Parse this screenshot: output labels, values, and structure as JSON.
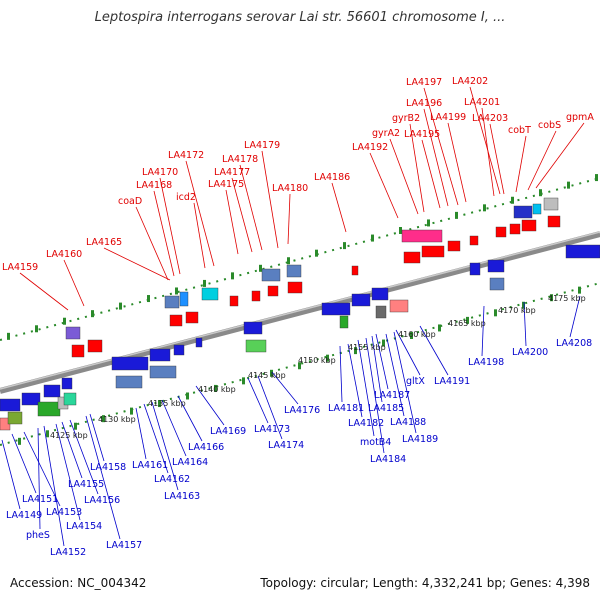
{
  "title": "Leptospira interrogans serovar Lai str. 56601 chromosome I, ...",
  "accession": "Accession: NC_004342",
  "summary": "Topology: circular; Length: 4,332,241 bp; Genes: 4,398",
  "colors": {
    "forward_label": "#e00000",
    "reverse_label": "#0000cc",
    "backbone": "#8a8a8a",
    "ticks": "#2a8a2a"
  },
  "scale_labels": [
    "4125 kbp",
    "4130 kbp",
    "4135 kbp",
    "4140 kbp",
    "4145 kbp",
    "4150 kbp",
    "4155 kbp",
    "4160 kbp",
    "4165 kbp",
    "4170 kbp",
    "4175 kbp"
  ],
  "forward_genes": [
    "LA4159",
    "LA4160",
    "LA4165",
    "coaD",
    "LA4168",
    "LA4170",
    "icd2",
    "LA4172",
    "LA4175",
    "LA4177",
    "LA4178",
    "LA4179",
    "LA4180",
    "LA4186",
    "LA4192",
    "gyrA2",
    "gyrB2",
    "LA4195",
    "LA4196",
    "LA4197",
    "LA4199",
    "LA4201",
    "LA4202",
    "LA4203",
    "cobT",
    "cobS",
    "gpmA"
  ],
  "reverse_genes": [
    "LA4149",
    "LA4151",
    "LA4153",
    "pheS",
    "LA4152",
    "LA4154",
    "LA4155",
    "LA4156",
    "LA4157",
    "LA4158",
    "LA4161",
    "LA4162",
    "LA4163",
    "LA4164",
    "LA4166",
    "LA4169",
    "LA4173",
    "LA4174",
    "LA4176",
    "LA4181",
    "LA4182",
    "motB4",
    "LA4184",
    "LA4185",
    "LA4187",
    "gltX",
    "LA4188",
    "LA4189",
    "LA4191",
    "LA4198",
    "LA4200",
    "LA4208"
  ]
}
